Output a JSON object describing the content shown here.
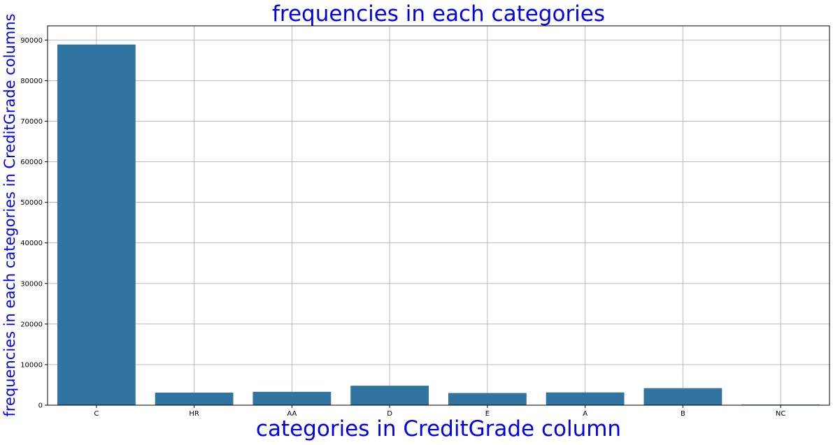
{
  "chart_data": {
    "type": "bar",
    "title": "frequencies in each categories",
    "xlabel": "categories in CreditGrade column",
    "ylabel": "frequencies in each categories in CreditGrade columns",
    "categories": [
      "C",
      "HR",
      "AA",
      "D",
      "E",
      "A",
      "B",
      "NC"
    ],
    "values": [
      88900,
      3100,
      3300,
      4800,
      3000,
      3150,
      4200,
      150
    ],
    "ylim": [
      0,
      93500
    ],
    "yticks": [
      0,
      10000,
      20000,
      30000,
      40000,
      50000,
      60000,
      70000,
      80000,
      90000
    ],
    "ytick_labels": [
      "0",
      "10000",
      "20000",
      "30000",
      "40000",
      "50000",
      "60000",
      "70000",
      "80000",
      "90000"
    ],
    "grid": true,
    "legend": "none",
    "bar_color": "#3274a1",
    "label_color": "#0000ee",
    "grid_color": "#b0b0b0"
  }
}
